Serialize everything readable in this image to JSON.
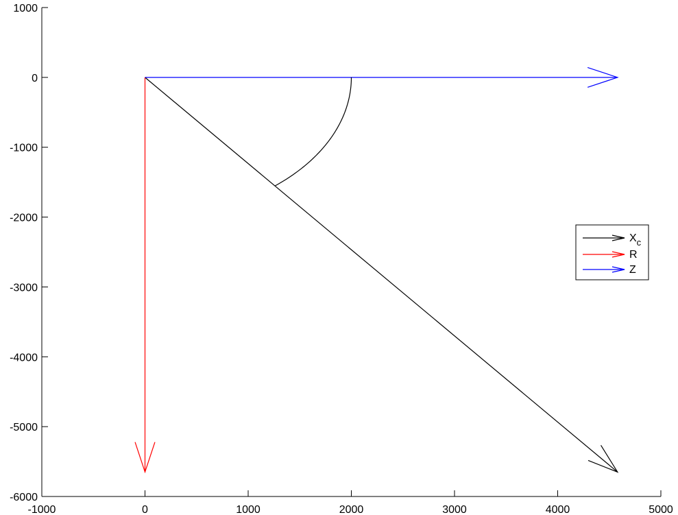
{
  "chart_data": {
    "type": "line",
    "title": "",
    "xlabel": "",
    "ylabel": "",
    "xlim": [
      -1000,
      5000
    ],
    "ylim": [
      -6000,
      1000
    ],
    "xticks": [
      -1000,
      0,
      1000,
      2000,
      3000,
      4000,
      5000
    ],
    "yticks": [
      1000,
      0,
      -1000,
      -2000,
      -3000,
      -4000,
      -5000,
      -6000
    ],
    "xtick_labels": [
      "-1000",
      "0",
      "1000",
      "2000",
      "3000",
      "4000",
      "5000"
    ],
    "ytick_labels": [
      "1000",
      "0",
      "-1000",
      "-2000",
      "-3000",
      "-4000",
      "-5000",
      "-6000"
    ],
    "grid": false,
    "legend_placement": "right",
    "series": [
      {
        "name": "X",
        "name_subscript": "c",
        "kind": "arrow",
        "color": "#000000",
        "start": [
          0,
          0
        ],
        "end": [
          4580,
          -5650
        ]
      },
      {
        "name": "R",
        "kind": "arrow",
        "color": "#ff0000",
        "start": [
          0,
          0
        ],
        "end": [
          0,
          -5650
        ]
      },
      {
        "name": "Z",
        "kind": "arrow",
        "color": "#0000ff",
        "start": [
          0,
          0
        ],
        "end": [
          4580,
          0
        ]
      }
    ],
    "annotations": [
      {
        "kind": "angle-arc",
        "color": "#000000",
        "center": [
          0,
          0
        ],
        "radius": 2000,
        "from_point": [
          2000,
          0
        ],
        "to_point": [
          1260,
          -1555
        ]
      }
    ]
  }
}
